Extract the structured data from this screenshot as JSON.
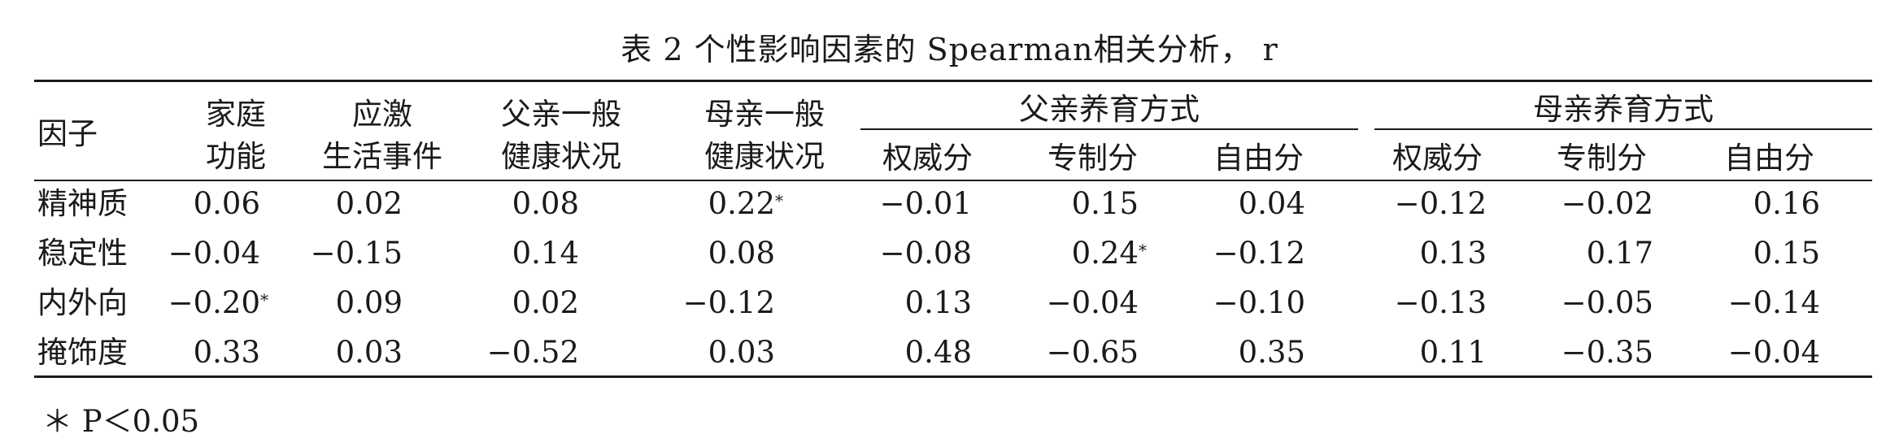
{
  "caption": "表 2  个性影响因素的 Spearman相关分析， r",
  "header": {
    "factor": "因子",
    "family_1": "家庭",
    "family_2": "功能",
    "stress_1": "应激",
    "stress_2": "生活事件",
    "father_health_1": "父亲一般",
    "father_health_2": "健康状况",
    "mother_health_1": "母亲一般",
    "mother_health_2": "健康状况",
    "father_style": "父亲养育方式",
    "mother_style": "母亲养育方式",
    "sub": [
      "权威分",
      "专制分",
      "自由分",
      "权威分",
      "专制分",
      "自由分"
    ]
  },
  "rows": [
    {
      "label": "精神质",
      "values": [
        "0.06",
        "0.02",
        "0.08",
        "0.22",
        "−0.01",
        "0.15",
        "0.04",
        "−0.12",
        "−0.02",
        "0.16"
      ],
      "marks": [
        "",
        "",
        "",
        "*",
        "",
        "",
        "",
        "",
        "",
        ""
      ]
    },
    {
      "label": "稳定性",
      "values": [
        "−0.04",
        "−0.15",
        "0.14",
        "0.08",
        "−0.08",
        "0.24",
        "−0.12",
        "0.13",
        "0.17",
        "0.15"
      ],
      "marks": [
        "",
        "",
        "",
        "",
        "",
        "*",
        "",
        "",
        "",
        ""
      ]
    },
    {
      "label": "内外向",
      "values": [
        "−0.20",
        "0.09",
        "0.02",
        "−0.12",
        "0.13",
        "−0.04",
        "−0.10",
        "−0.13",
        "−0.05",
        "−0.14"
      ],
      "marks": [
        "*",
        "",
        "",
        "",
        "",
        "",
        "",
        "",
        "",
        ""
      ]
    },
    {
      "label": "掩饰度",
      "values": [
        "0.33",
        "0.03",
        "−0.52",
        "0.03",
        "0.48",
        "−0.65",
        "0.35",
        "0.11",
        "−0.35",
        "−0.04"
      ],
      "marks": [
        "",
        "",
        "",
        "",
        "",
        "",
        "",
        "",
        "",
        ""
      ]
    }
  ],
  "footnote": "＊ P＜0.05"
}
